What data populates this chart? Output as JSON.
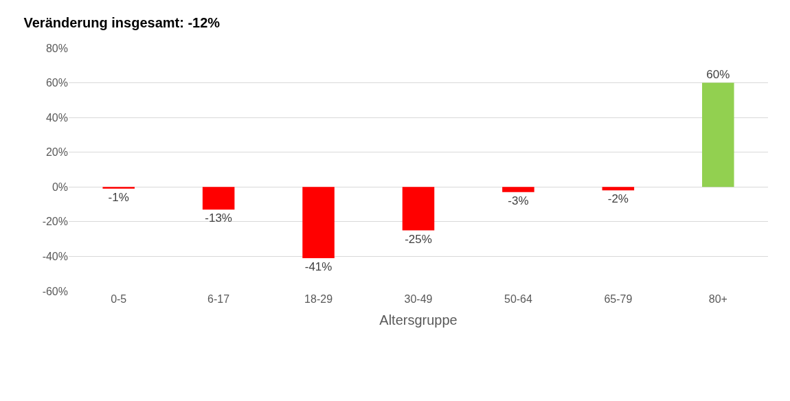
{
  "chart_data": {
    "type": "bar",
    "title": "Veränderung insgesamt: -12%",
    "xlabel": "Altersgruppe",
    "categories": [
      "0-5",
      "6-17",
      "18-29",
      "30-49",
      "50-64",
      "65-79",
      "80+"
    ],
    "values": [
      -1,
      -13,
      -41,
      -25,
      -3,
      -2,
      60
    ],
    "colors": [
      "#ff0000",
      "#ff0000",
      "#ff0000",
      "#ff0000",
      "#ff0000",
      "#ff0000",
      "#92d050"
    ],
    "value_labels": [
      "-1%",
      "-13%",
      "-41%",
      "-25%",
      "-3%",
      "-2%",
      "60%"
    ],
    "ylim": [
      -60,
      80
    ],
    "yticks": [
      {
        "value": -60,
        "label": "-60%"
      },
      {
        "value": -40,
        "label": "-40%"
      },
      {
        "value": -20,
        "label": "-20%"
      },
      {
        "value": 0,
        "label": "0%"
      },
      {
        "value": 20,
        "label": "20%"
      },
      {
        "value": 40,
        "label": "40%"
      },
      {
        "value": 60,
        "label": "60%"
      },
      {
        "value": 80,
        "label": "80%"
      }
    ],
    "grid": "y",
    "legend": false
  }
}
